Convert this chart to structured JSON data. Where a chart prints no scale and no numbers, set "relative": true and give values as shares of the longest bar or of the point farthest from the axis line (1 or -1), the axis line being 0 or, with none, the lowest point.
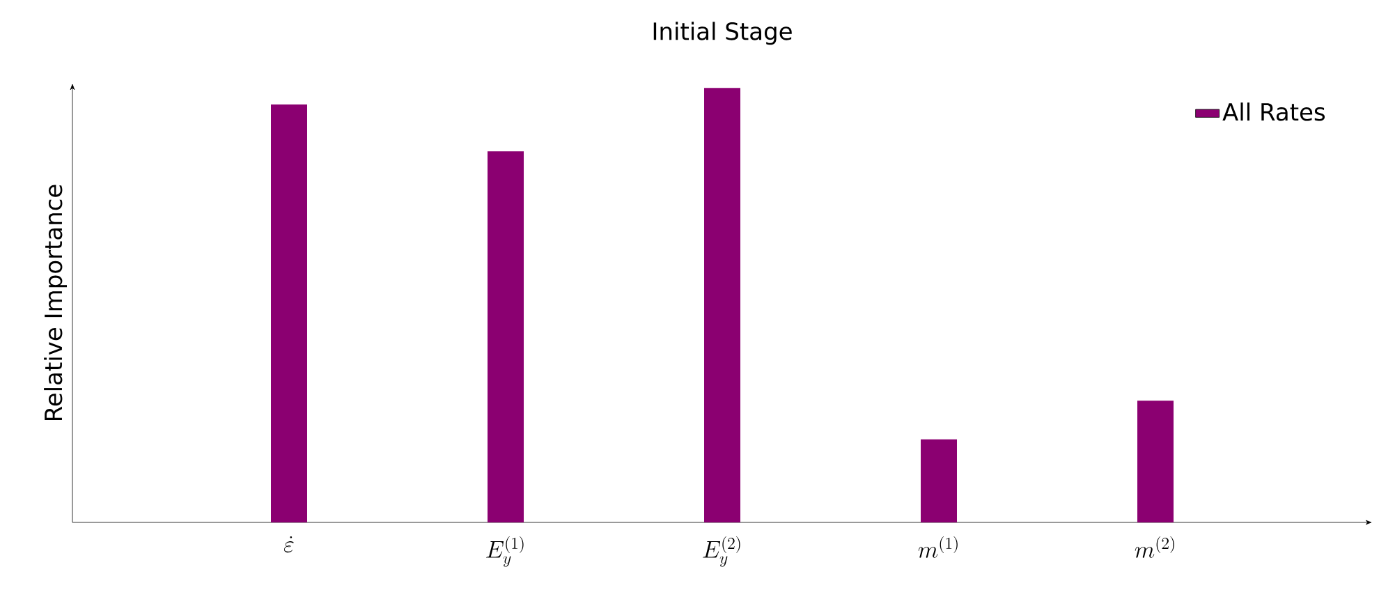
{
  "chart_data": {
    "type": "bar",
    "title": "Initial Stage",
    "ylabel": "Relative Importance",
    "categories": [
      "\\dot{\\varepsilon}",
      "E_y^{(1)}",
      "E_y^{(2)}",
      "m^{(1)}",
      "m^{(2)}"
    ],
    "series": [
      {
        "name": "All Rates",
        "color": "#8b0071",
        "values": [
          0.962,
          0.854,
          1,
          0.191,
          0.28
        ]
      }
    ],
    "relative": true,
    "legend": "top right"
  }
}
